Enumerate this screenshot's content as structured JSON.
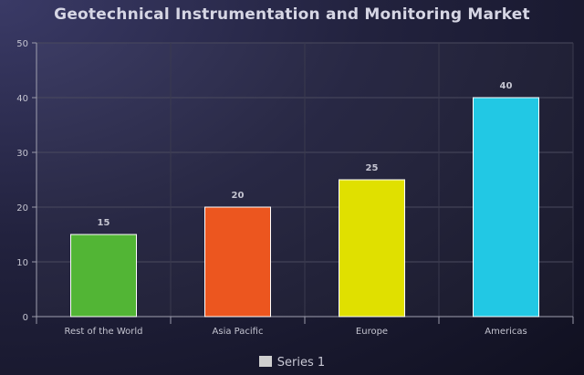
{
  "chart_data": {
    "type": "bar",
    "title": "Geotechnical Instrumentation and Monitoring Market",
    "categories": [
      "Rest of the World",
      "Asia Pacific",
      "Europe",
      "Americas"
    ],
    "series": [
      {
        "name": "Series 1",
        "values": [
          15,
          20,
          25,
          40
        ],
        "colors": [
          "#52b535",
          "#ec561f",
          "#e0e000",
          "#22c8e4"
        ]
      }
    ],
    "ylim": [
      0,
      50
    ],
    "yticks": [
      0,
      10,
      20,
      30,
      40,
      50
    ],
    "grid": true,
    "legend_position": "bottom-center",
    "data_labels": true
  }
}
